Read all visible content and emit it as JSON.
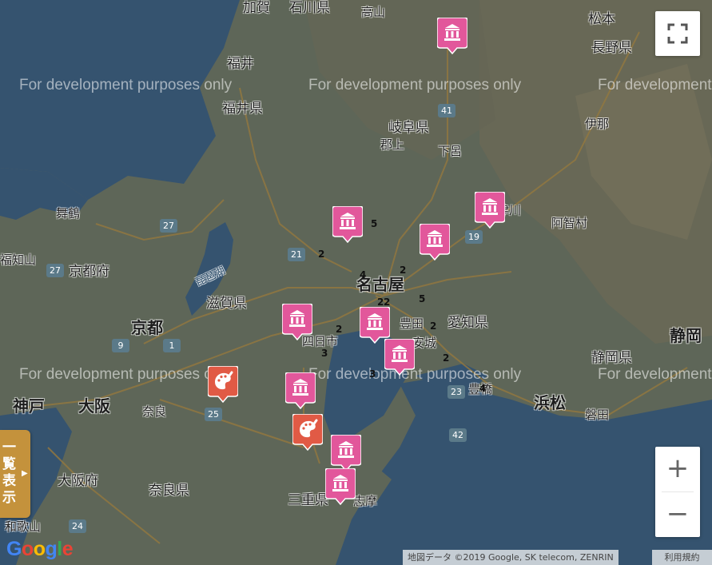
{
  "map": {
    "watermark": "For development purposes only",
    "labels": {
      "ishikawa": "石川県",
      "kaga": "加賀",
      "fukui": "福井",
      "fukui_pref": "福井県",
      "gifu_pref": "岐阜県",
      "gujo": "郡上",
      "gero": "下呂",
      "nagano_pref": "長野県",
      "matsumoto": "松本",
      "ina": "伊那",
      "nakatsugawa": "津川",
      "maizuru": "舞鶴",
      "fukuchiyama": "福知山",
      "kyoto_pref": "京都府",
      "shiga_pref": "滋賀県",
      "biwako": "琵琶湖",
      "kyoto": "京都",
      "nagoya": "名古屋",
      "toyota": "豊田",
      "aichi_pref": "愛知県",
      "yokkaichi": "四日市",
      "shizuoka": "静岡",
      "shizuoka_pref": "静岡県",
      "hamamatsu": "浜松",
      "iwata": "磐田",
      "toyohashi": "豊橋",
      "kobe": "神戸",
      "osaka": "大阪",
      "nara": "奈良",
      "osaka_pref": "大阪府",
      "nara_pref": "奈良県",
      "mie_pref": "三重県",
      "shima": "志摩",
      "wakayama": "和歌山",
      "achi": "阿智村",
      "anjo": "安城",
      "takayama": "高山"
    },
    "cluster_counts": [
      "5",
      "2",
      "4",
      "2",
      "2",
      "2",
      "5",
      "2",
      "3",
      "2",
      "2",
      "3",
      "4"
    ],
    "route_numbers": [
      "41",
      "19",
      "21",
      "27",
      "27",
      "9",
      "1",
      "25",
      "23",
      "42",
      "24"
    ],
    "markers": [
      {
        "type": "museum",
        "color": "#e2579b",
        "icon": "museum-icon"
      },
      {
        "type": "museum",
        "color": "#e2579b",
        "icon": "museum-icon"
      },
      {
        "type": "museum",
        "color": "#e2579b",
        "icon": "museum-icon"
      },
      {
        "type": "museum",
        "color": "#e2579b",
        "icon": "museum-icon"
      },
      {
        "type": "museum",
        "color": "#e2579b",
        "icon": "museum-icon"
      },
      {
        "type": "museum",
        "color": "#e2579b",
        "icon": "museum-icon"
      },
      {
        "type": "museum",
        "color": "#e2579b",
        "icon": "museum-icon"
      },
      {
        "type": "museum",
        "color": "#e2579b",
        "icon": "museum-icon"
      },
      {
        "type": "museum",
        "color": "#e2579b",
        "icon": "museum-icon"
      },
      {
        "type": "museum",
        "color": "#e2579b",
        "icon": "museum-icon"
      },
      {
        "type": "art",
        "color": "#e15a45",
        "icon": "palette-icon"
      },
      {
        "type": "art",
        "color": "#e15a45",
        "icon": "palette-icon"
      }
    ]
  },
  "controls": {
    "zoom_in": "+",
    "zoom_out": "−",
    "fullscreen_icon": "fullscreen-icon",
    "list_toggle": "一覧表示",
    "list_arrow": "▶"
  },
  "footer": {
    "google_logo": "Google",
    "attribution": "地図データ ©2019 Google, SK telecom, ZENRIN",
    "terms": "利用規約"
  },
  "colors": {
    "sea": "#3d6a93",
    "land": "#7f8a72",
    "museum_marker": "#e2579b",
    "art_marker": "#e15a45",
    "list_tab": "#c4923c"
  }
}
